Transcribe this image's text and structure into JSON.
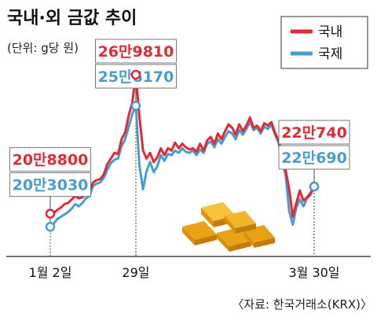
{
  "chart_data": {
    "type": "line",
    "title": "국내·외 금값 추이",
    "unit_label": "(단위: g당 원)",
    "source": "〈자료: 한국거래소(KRX)〉",
    "xlabel": "",
    "ylabel": "",
    "x_tick_labels": [
      "1월 2일",
      "29일",
      "3월 30일"
    ],
    "ylim": [
      190000,
      275000
    ],
    "grid": false,
    "legend": {
      "position": "top-right",
      "entries": [
        {
          "label": "국내",
          "color": "#e02a34"
        },
        {
          "label": "국제",
          "color": "#4a9ccd"
        }
      ]
    },
    "series": [
      {
        "name": "국내",
        "color": "#e02a34",
        "values": [
          208800,
          209000,
          210500,
          211500,
          213000,
          213500,
          215000,
          216500,
          215500,
          216000,
          218000,
          218500,
          222500,
          223500,
          224000,
          226000,
          230500,
          233000,
          235500,
          235000,
          241500,
          244500,
          252000,
          257500,
          269810,
          251500,
          236500,
          233000,
          235500,
          231500,
          233500,
          237500,
          234500,
          237500,
          236500,
          240000,
          237500,
          239500,
          238000,
          237000,
          237500,
          236000,
          239500,
          236500,
          241000,
          242500,
          239500,
          244000,
          241500,
          245000,
          248000,
          246500,
          243500,
          248000,
          245000,
          247500,
          251000,
          246500,
          247500,
          245000,
          248500,
          247500,
          249000,
          244500,
          241000,
          235500,
          228000,
          219500,
          207500,
          213500,
          219000,
          214500,
          216000,
          218000,
          220740
        ]
      },
      {
        "name": "국제",
        "color": "#4a9ccd",
        "values": [
          203030,
          204500,
          206500,
          207500,
          208500,
          209500,
          211000,
          213000,
          212000,
          213500,
          215500,
          216500,
          221000,
          222000,
          222500,
          224500,
          228000,
          231000,
          232500,
          233000,
          238500,
          241500,
          247000,
          252500,
          256170,
          230000,
          219500,
          227500,
          231500,
          227000,
          229500,
          234500,
          232000,
          235000,
          234500,
          236500,
          235500,
          237500,
          236000,
          235500,
          236500,
          234500,
          237000,
          235500,
          239500,
          240500,
          238000,
          241500,
          239500,
          242500,
          245000,
          244000,
          241500,
          245500,
          243500,
          246000,
          249000,
          245500,
          246500,
          244000,
          247000,
          246000,
          248000,
          243500,
          240000,
          232000,
          225500,
          210000,
          204000,
          211500,
          215000,
          212000,
          215500,
          217000,
          220690
        ]
      }
    ],
    "annotations": [
      {
        "label": "20만8800",
        "series": "국내",
        "index": 0
      },
      {
        "label": "20만3030",
        "series": "국제",
        "index": 0
      },
      {
        "label": "26만9810",
        "series": "국내",
        "index": 24
      },
      {
        "label": "25만6170",
        "series": "국제",
        "index": 24
      },
      {
        "label": "22만740",
        "series": "국내",
        "index": 74
      },
      {
        "label": "22만690",
        "series": "국제",
        "index": 74
      }
    ]
  }
}
